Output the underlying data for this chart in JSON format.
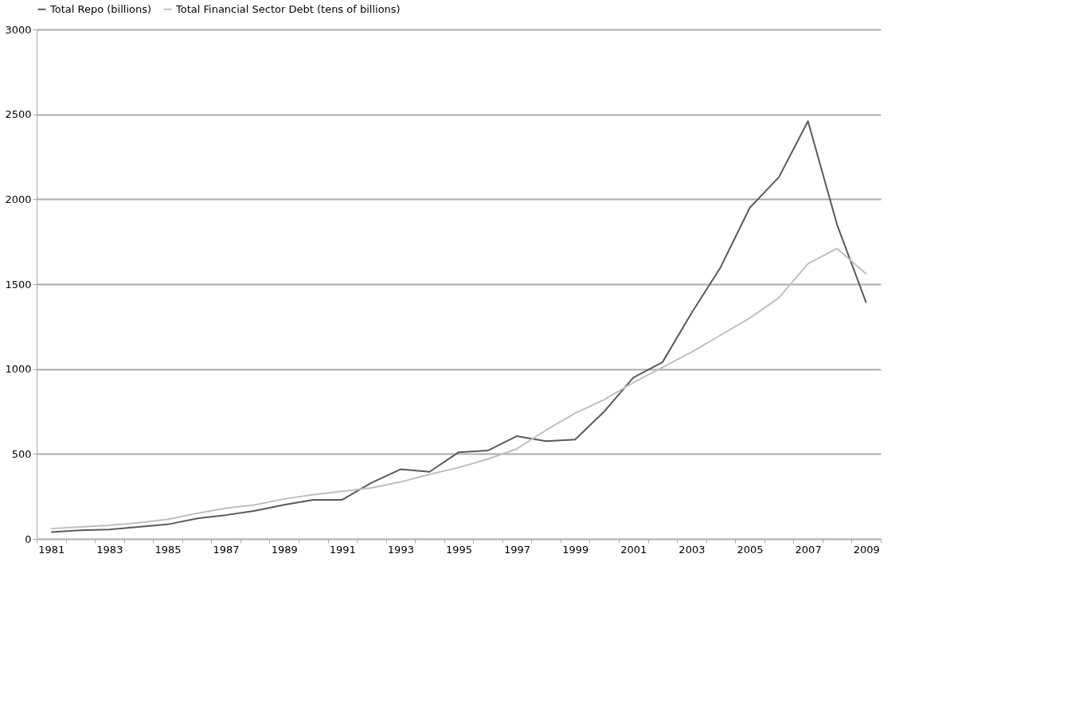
{
  "chart_data": {
    "type": "line",
    "categories": [
      "1981",
      null,
      "1983",
      null,
      "1985",
      null,
      "1987",
      null,
      "1989",
      null,
      "1991",
      null,
      "1993",
      null,
      "1995",
      null,
      "1997",
      null,
      "1999",
      null,
      "2001",
      null,
      "2003",
      null,
      "2005",
      null,
      "2007",
      null,
      "2009"
    ],
    "series": [
      {
        "name": "Total Repo (billions)",
        "color": "#595959",
        "values": [
          40,
          50,
          55,
          70,
          85,
          120,
          140,
          165,
          200,
          230,
          230,
          330,
          410,
          395,
          510,
          520,
          605,
          575,
          585,
          750,
          950,
          1040,
          1330,
          1600,
          1950,
          2130,
          2460,
          1850,
          1390
        ]
      },
      {
        "name": "Total Financial Sector Debt (tens of billions)",
        "color": "#bfbfbf",
        "values": [
          60,
          70,
          80,
          95,
          115,
          150,
          180,
          200,
          235,
          260,
          280,
          300,
          335,
          380,
          420,
          470,
          530,
          640,
          740,
          820,
          920,
          1010,
          1100,
          1200,
          1300,
          1420,
          1620,
          1710,
          1560
        ]
      }
    ],
    "ylim": [
      0,
      3000
    ],
    "yticks": [
      0,
      500,
      1000,
      1500,
      2000,
      2500,
      3000
    ],
    "grid": "y",
    "legend": "top",
    "marker": "none",
    "line_style": "solid"
  }
}
